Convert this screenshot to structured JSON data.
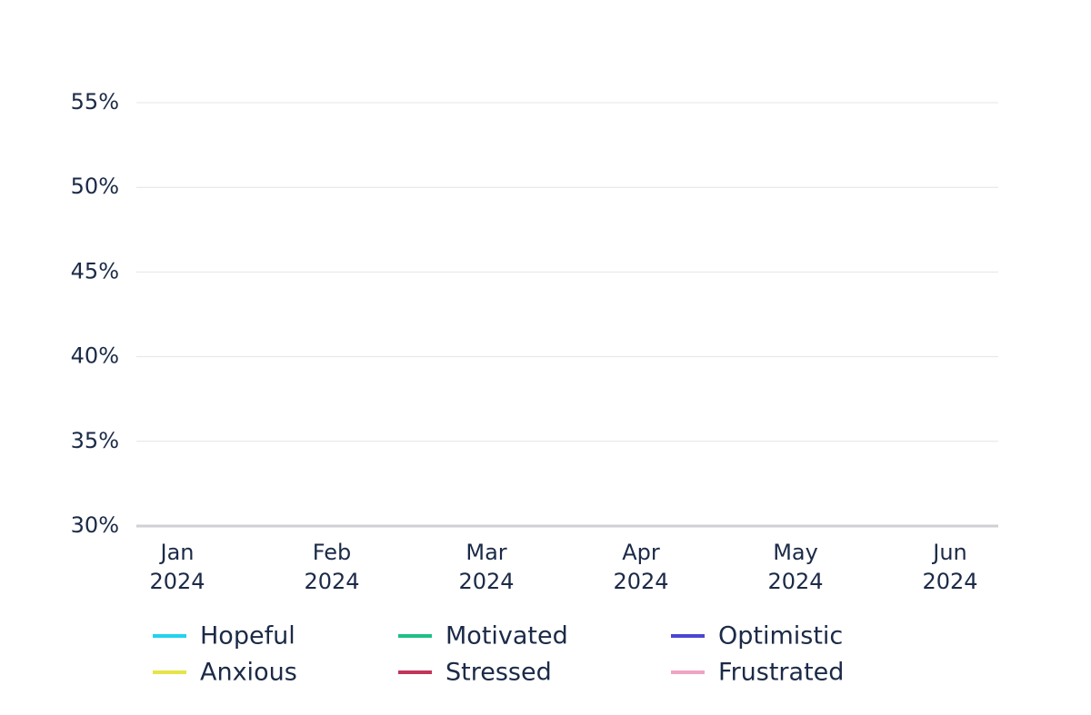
{
  "chart_data": {
    "type": "line",
    "categories": [
      "Jan 2024",
      "Feb 2024",
      "Mar 2024",
      "Apr 2024",
      "May 2024",
      "Jun 2024"
    ],
    "series": [
      {
        "name": "Hopeful",
        "color": "#22d3ee",
        "values": [
          null,
          null,
          null,
          null,
          null,
          null
        ]
      },
      {
        "name": "Motivated",
        "color": "#1fbf87",
        "values": [
          null,
          null,
          null,
          null,
          null,
          null
        ]
      },
      {
        "name": "Optimistic",
        "color": "#4b45d6",
        "values": [
          null,
          null,
          null,
          null,
          null,
          null
        ]
      },
      {
        "name": "Anxious",
        "color": "#e6e447",
        "values": [
          null,
          null,
          null,
          null,
          null,
          null
        ]
      },
      {
        "name": "Stressed",
        "color": "#c2355a",
        "values": [
          null,
          null,
          null,
          null,
          null,
          null
        ]
      },
      {
        "name": "Frustrated",
        "color": "#f0a3c3",
        "values": [
          null,
          null,
          null,
          null,
          null,
          null
        ]
      }
    ],
    "ylim": [
      30,
      55
    ],
    "yticks": [
      {
        "value": 30,
        "label": "30%"
      },
      {
        "value": 35,
        "label": "35%"
      },
      {
        "value": 40,
        "label": "40%"
      },
      {
        "value": 45,
        "label": "45%"
      },
      {
        "value": 50,
        "label": "50%"
      },
      {
        "value": 55,
        "label": "55%"
      }
    ],
    "grid": true,
    "legend": "bottom"
  }
}
